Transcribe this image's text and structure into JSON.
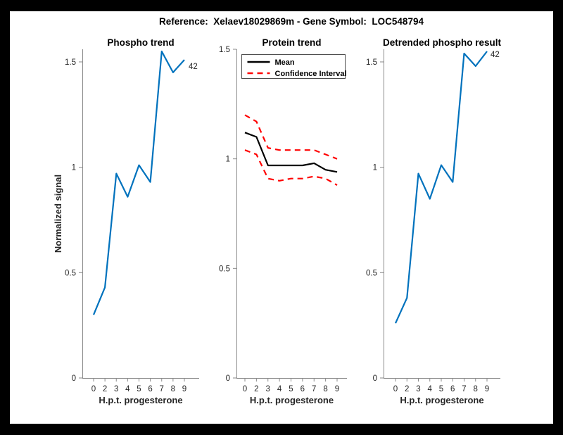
{
  "figure": {
    "title": "Reference:  Xelaev18029869m - Gene Symbol:  LOC548794",
    "background_color": "#000000",
    "canvas_color": "#ffffff"
  },
  "colors": {
    "phospho_line": "#0072BD",
    "mean_line": "#000000",
    "confidence_line": "#ff0000",
    "axis": "#8a8a8a",
    "tick_text": "#262626",
    "title_text": "#000000"
  },
  "chart_data": [
    {
      "type": "line",
      "title": "Phospho trend",
      "xlabel": "H.p.t. progesterone",
      "ylabel": "Normalized signal",
      "x_scale": "categorical",
      "x_ticklabels": [
        "0",
        "2",
        "3",
        "4",
        "5",
        "6",
        "7",
        "8",
        "9"
      ],
      "yticks": [
        0,
        0.5,
        1,
        1.5
      ],
      "ylim": [
        0,
        1.56
      ],
      "grid": false,
      "series": [
        {
          "name": "Phospho trend",
          "color": "#0072BD",
          "style": "solid",
          "values": [
            0.3,
            0.43,
            0.97,
            0.86,
            1.01,
            0.93,
            1.55,
            1.45,
            1.51
          ]
        }
      ],
      "annotation": "42",
      "legend": null
    },
    {
      "type": "line",
      "title": "Protein trend",
      "xlabel": "H.p.t. progesterone",
      "ylabel": "",
      "x_scale": "categorical",
      "x_ticklabels": [
        "0",
        "2",
        "3",
        "4",
        "5",
        "6",
        "7",
        "8",
        "9"
      ],
      "yticks": [
        0,
        0.5,
        1,
        1.5
      ],
      "ylim": [
        0,
        1.5
      ],
      "grid": false,
      "series": [
        {
          "name": "Mean",
          "color": "#000000",
          "style": "solid",
          "values": [
            1.12,
            1.1,
            0.97,
            0.97,
            0.97,
            0.97,
            0.98,
            0.95,
            0.94
          ]
        },
        {
          "name": "Confidence Interval (upper)",
          "color": "#ff0000",
          "style": "dashed",
          "values": [
            1.2,
            1.17,
            1.05,
            1.04,
            1.04,
            1.04,
            1.04,
            1.02,
            1.0
          ]
        },
        {
          "name": "Confidence Interval (lower)",
          "color": "#ff0000",
          "style": "dashed",
          "values": [
            1.04,
            1.02,
            0.91,
            0.9,
            0.91,
            0.91,
            0.92,
            0.91,
            0.88
          ]
        }
      ],
      "annotation": null,
      "legend": {
        "position": "northwest",
        "entries": [
          {
            "label": "Mean",
            "color": "#000000",
            "style": "solid"
          },
          {
            "label": "Confidence Interval",
            "color": "#ff0000",
            "style": "dashed"
          }
        ]
      }
    },
    {
      "type": "line",
      "title": "Detrended phospho result",
      "xlabel": "H.p.t. progesterone",
      "ylabel": "",
      "x_scale": "categorical",
      "x_ticklabels": [
        "0",
        "2",
        "3",
        "4",
        "5",
        "6",
        "7",
        "8",
        "9"
      ],
      "yticks": [
        0,
        0.5,
        1,
        1.5
      ],
      "ylim": [
        0,
        1.56
      ],
      "grid": false,
      "series": [
        {
          "name": "Detrended phospho",
          "color": "#0072BD",
          "style": "solid",
          "values": [
            0.26,
            0.38,
            0.97,
            0.85,
            1.01,
            0.93,
            1.54,
            1.48,
            1.55
          ]
        }
      ],
      "annotation": "42",
      "legend": null
    }
  ]
}
